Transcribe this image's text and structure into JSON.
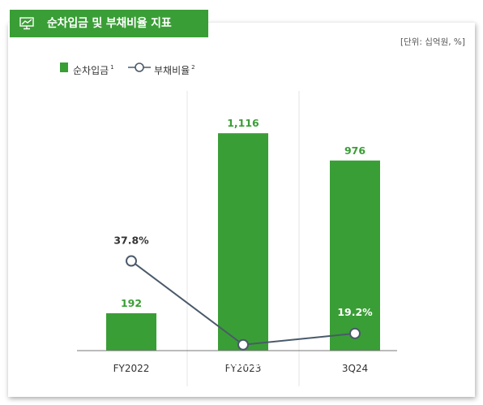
{
  "header": {
    "title": "순차입금 및 부채비율 지표",
    "icon": "monitor-chart-icon"
  },
  "unit_label": "[단위: 십억원, %]",
  "colors": {
    "accent": "#3a9e36",
    "line": "#4a5a6a",
    "bar_label": "#3a9e36",
    "text": "#333333"
  },
  "legend": [
    {
      "label": "순차입금",
      "marker": "1",
      "kind": "bar"
    },
    {
      "label": "부채비율",
      "marker": "2",
      "kind": "line"
    }
  ],
  "chart_data": {
    "type": "bar",
    "title": "",
    "categories": [
      "FY2022",
      "FY2023",
      "3Q24"
    ],
    "series": [
      {
        "name": "순차입금",
        "type": "bar",
        "values": [
          192,
          1116,
          976
        ],
        "labels": [
          "192",
          "1,116",
          "976"
        ]
      },
      {
        "name": "부채비율",
        "type": "line",
        "values": [
          37.8,
          16.3,
          19.2
        ],
        "labels": [
          "37.8%",
          "16.3%",
          "19.2%"
        ]
      }
    ],
    "ylim_bar": [
      0,
      1200
    ],
    "ylim_line": [
      0,
      60
    ],
    "grid": false,
    "legend_position": "top-left"
  }
}
